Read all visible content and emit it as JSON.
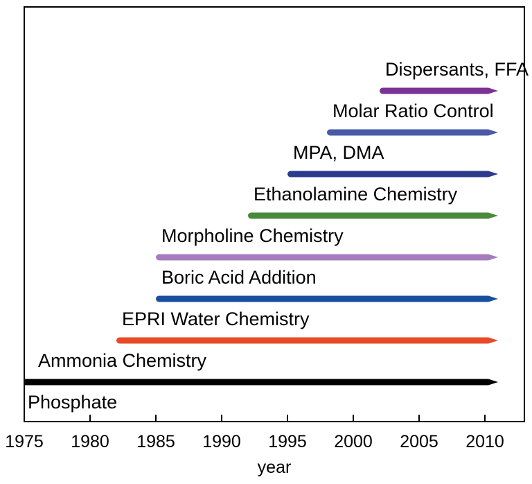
{
  "chart_data": {
    "type": "bar",
    "subtype": "horizontal-timeline-arrows",
    "title": "",
    "xlabel": "year",
    "ylabel": "",
    "xlim": [
      1975,
      2013
    ],
    "xticks": [
      1975,
      1980,
      1985,
      1990,
      1995,
      2000,
      2005,
      2010
    ],
    "grid": false,
    "legend": "none",
    "series": [
      {
        "name": "Dispersants, FFA",
        "start": 2002,
        "end": 2011,
        "color": "#7b3294"
      },
      {
        "name": "Molar Ratio Control",
        "start": 1998,
        "end": 2011,
        "color": "#4a5aa8"
      },
      {
        "name": "MPA, DMA",
        "start": 1995,
        "end": 2011,
        "color": "#2e3a8c"
      },
      {
        "name": "Ethanolamine Chemistry",
        "start": 1992,
        "end": 2011,
        "color": "#4a8a3c"
      },
      {
        "name": "Morpholine Chemistry",
        "start": 1985,
        "end": 2011,
        "color": "#a57cc0"
      },
      {
        "name": "Boric Acid Addition",
        "start": 1985,
        "end": 2011,
        "color": "#1a4fa0"
      },
      {
        "name": "EPRI Water Chemistry",
        "start": 1982,
        "end": 2011,
        "color": "#e84a27"
      },
      {
        "name": "Ammonia Chemistry",
        "start": 1975,
        "end": 2011,
        "color": "#000000"
      }
    ],
    "annotations": [
      "Phosphate"
    ]
  }
}
